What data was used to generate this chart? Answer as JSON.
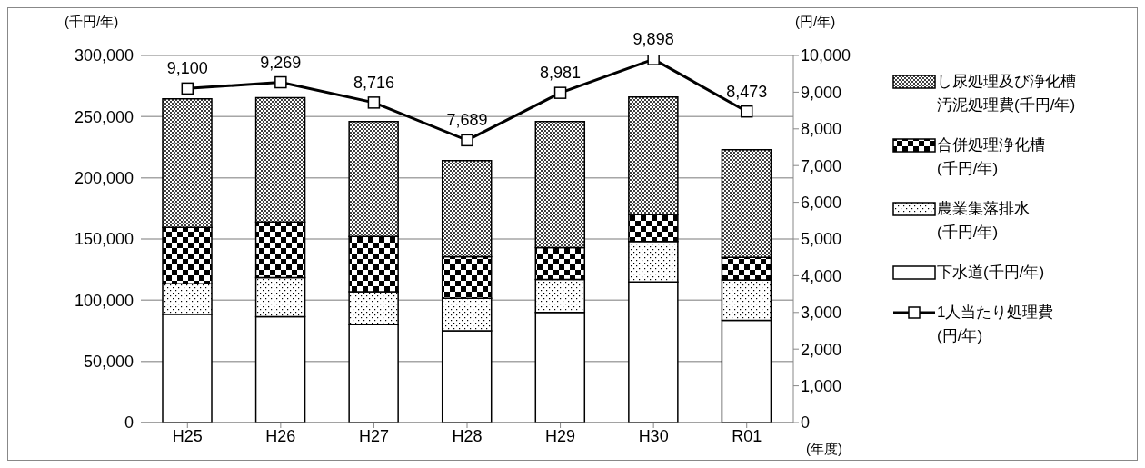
{
  "chart_data": {
    "type": "bar",
    "stacked": true,
    "categories": [
      "H25",
      "H26",
      "H27",
      "H28",
      "H29",
      "H30",
      "R01"
    ],
    "xlabel": "(年度)",
    "ylabel": "(千円/年)",
    "y2label": "(円/年)",
    "ylim": [
      0,
      300000
    ],
    "yticks": [
      0,
      {
        "value": 50000,
        "label": "50,000"
      },
      {
        "value": 100000,
        "label": "100,000"
      },
      {
        "value": 150000,
        "label": "150,000"
      },
      {
        "value": 200000,
        "label": "200,000"
      },
      {
        "value": 250000,
        "label": "250,000"
      },
      {
        "value": 300000,
        "label": "300,000"
      }
    ],
    "y2lim": [
      0,
      10000
    ],
    "y2ticks": [
      0,
      {
        "value": 1000,
        "label": "1,000"
      },
      {
        "value": 2000,
        "label": "2,000"
      },
      {
        "value": 3000,
        "label": "3,000"
      },
      {
        "value": 4000,
        "label": "4,000"
      },
      {
        "value": 5000,
        "label": "5,000"
      },
      {
        "value": 6000,
        "label": "6,000"
      },
      {
        "value": 7000,
        "label": "7,000"
      },
      {
        "value": 8000,
        "label": "8,000"
      },
      {
        "value": 9000,
        "label": "9,000"
      },
      {
        "value": 10000,
        "label": "10,000"
      }
    ],
    "grid": "y",
    "legend": "right",
    "series": [
      {
        "name": "下水道(千円/年)",
        "color": "#ffffff",
        "values": [
          88500,
          86500,
          80000,
          75000,
          90000,
          115000,
          83500
        ]
      },
      {
        "name": "農業集落排水(千円/年)",
        "color": "#000000",
        "values": [
          25000,
          32000,
          27000,
          26500,
          27000,
          33000,
          33000
        ]
      },
      {
        "name": "合併処理浄化槽(千円/年)",
        "color": "#000000",
        "values": [
          46000,
          45500,
          45000,
          34000,
          26000,
          22000,
          18500
        ]
      },
      {
        "name": "し尿処理及び浄化槽汚泥処理費(千円/年)",
        "color": "#000000",
        "values": [
          105000,
          101500,
          94000,
          78500,
          103000,
          96000,
          88000
        ]
      },
      {
        "name": "1人当たり処理費(円/年)",
        "type": "line",
        "axis": "y2",
        "color": "#000000",
        "marker": "square",
        "line_style": "solid",
        "values": [
          9100,
          9269,
          8716,
          7689,
          8981,
          9898,
          8473
        ],
        "value_labels": [
          "9,100",
          "9,269",
          "8,716",
          "7,689",
          "8,981",
          "9,898",
          "8,473"
        ]
      }
    ]
  }
}
